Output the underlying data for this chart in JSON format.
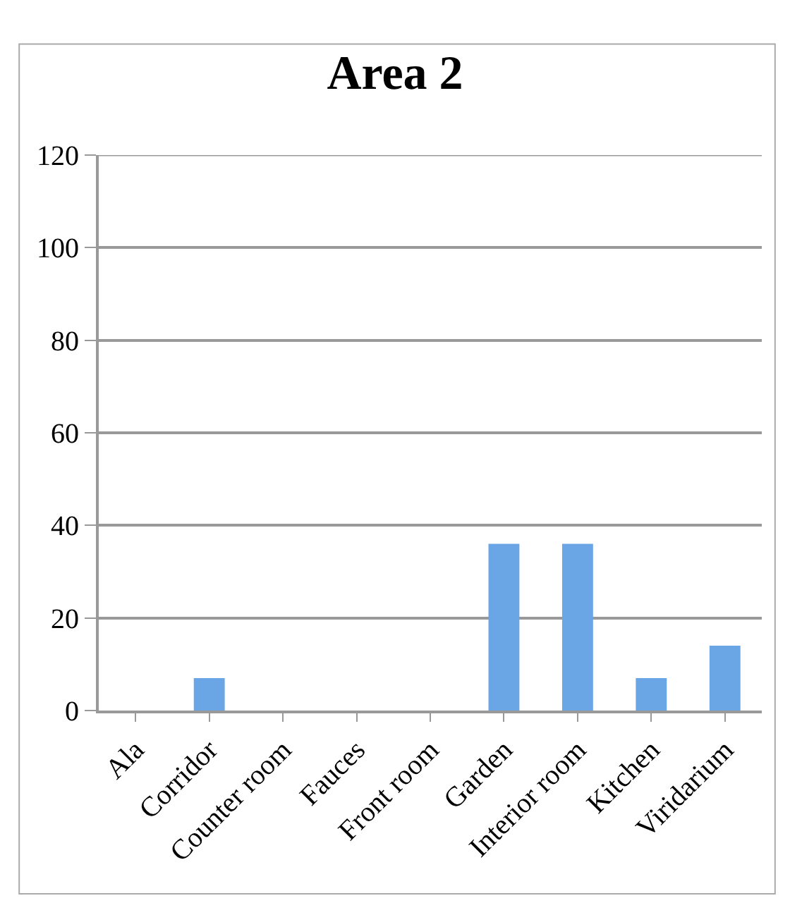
{
  "chart_data": {
    "type": "bar",
    "title": "Area 2",
    "categories": [
      "Ala",
      "Corridor",
      "Counter room",
      "Fauces",
      "Front room",
      "Garden",
      "Interior room",
      "Kitchen",
      "Viridarium"
    ],
    "values": [
      0,
      7,
      0,
      0,
      0,
      36,
      36,
      7,
      14
    ],
    "color": "#6aa5e6",
    "ylim": [
      0,
      120
    ],
    "yticks": [
      0,
      20,
      40,
      60,
      80,
      100,
      120
    ],
    "grid": "y"
  }
}
